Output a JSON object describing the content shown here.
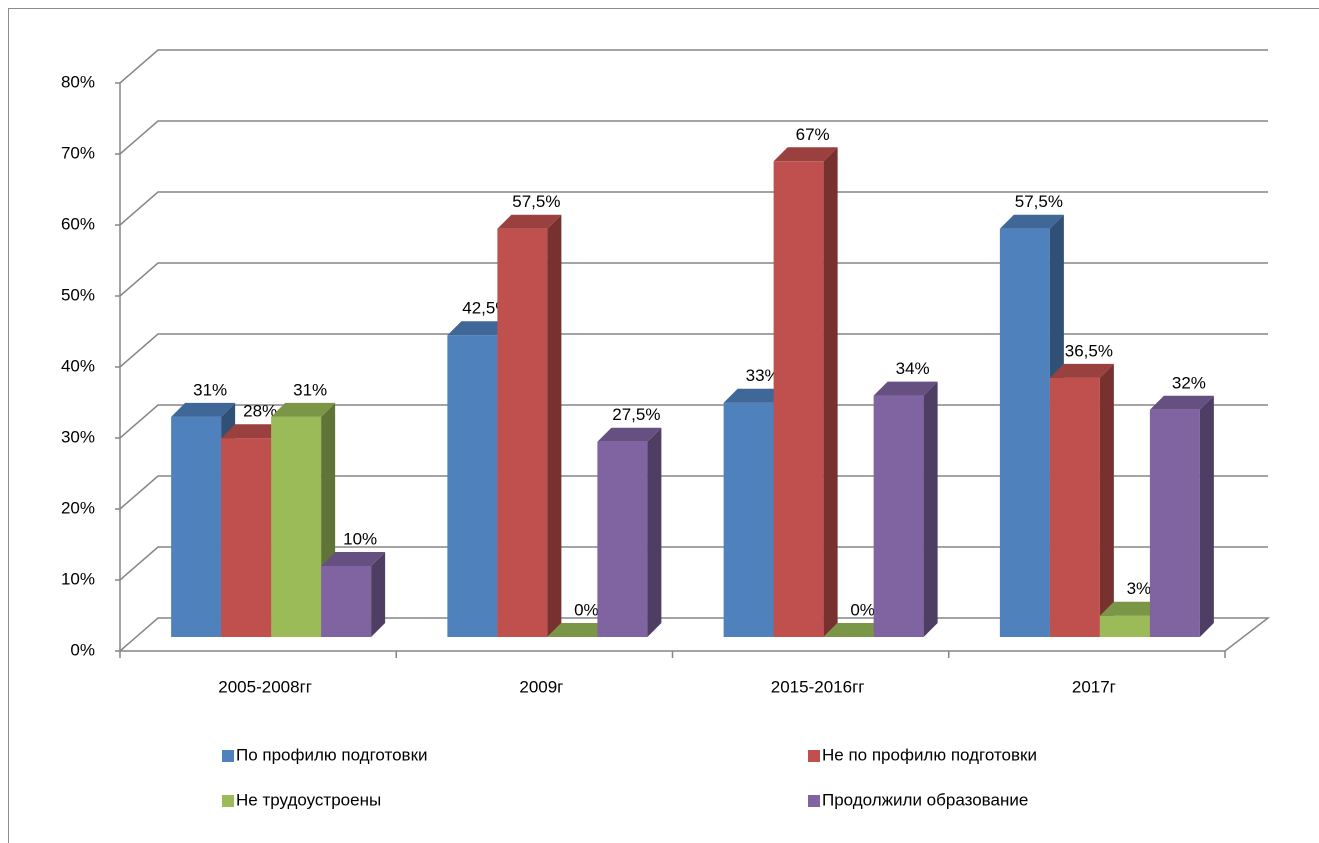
{
  "chart_data": {
    "type": "bar3d",
    "categories": [
      "2005-2008гг",
      "2009г",
      "2015-2016гг",
      "2017г"
    ],
    "series": [
      {
        "name": "По профилю подготовки",
        "color": "#4f81bd",
        "values": [
          31,
          42.5,
          33,
          57.5
        ],
        "value_labels": [
          "31%",
          "42,5%",
          "33%",
          "57,5%"
        ]
      },
      {
        "name": "Не по профилю подготовки",
        "color": "#c0504d",
        "values": [
          28,
          57.5,
          67,
          36.5
        ],
        "value_labels": [
          "28%",
          "57,5%",
          "67%",
          "36,5%"
        ]
      },
      {
        "name": "Не трудоустроены",
        "color": "#9bbb59",
        "values": [
          31,
          0,
          0,
          3
        ],
        "value_labels": [
          "31%",
          "0%",
          "0%",
          "3%"
        ]
      },
      {
        "name": "Продолжили образование",
        "color": "#8064a2",
        "values": [
          10,
          27.5,
          34,
          32
        ],
        "value_labels": [
          "10%",
          "27,5%",
          "34%",
          "32%"
        ]
      }
    ],
    "ylim": [
      0,
      80
    ],
    "yticks": [
      {
        "value": 0,
        "label": "0%"
      },
      {
        "value": 10,
        "label": "10%"
      },
      {
        "value": 20,
        "label": "20%"
      },
      {
        "value": 30,
        "label": "30%"
      },
      {
        "value": 40,
        "label": "40%"
      },
      {
        "value": 50,
        "label": "50%"
      },
      {
        "value": 60,
        "label": "60%"
      },
      {
        "value": 70,
        "label": "70%"
      },
      {
        "value": 80,
        "label": "80%"
      }
    ],
    "grid": true,
    "legend": "bottom"
  }
}
